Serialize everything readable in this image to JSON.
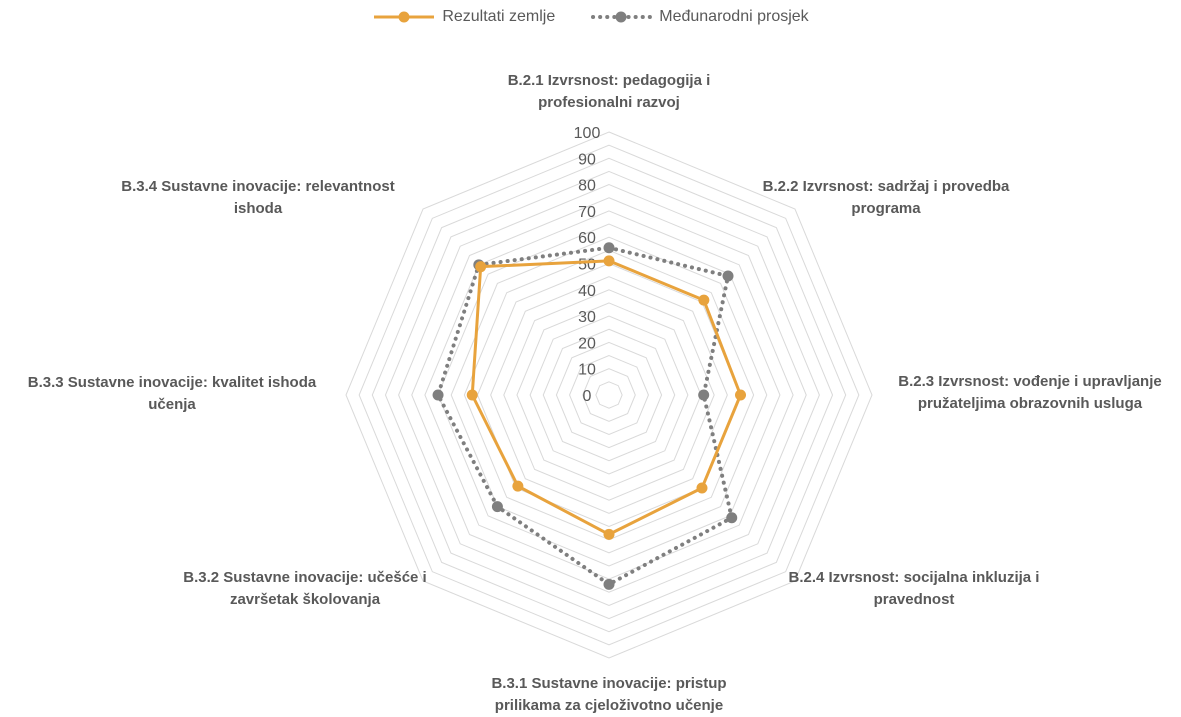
{
  "colors": {
    "country": "#E8A33D",
    "average": "#7F7F7F",
    "grid": "#D9D9D9",
    "text": "#595959"
  },
  "chart_data": {
    "type": "radar",
    "axes": [
      [
        "B.2.1 Izvrsnost: pedagogija i",
        "profesionalni razvoj"
      ],
      [
        "B.2.2 Izvrsnost: sadržaj i provedba",
        "programa"
      ],
      [
        "B.2.3 Izvrsnost: vođenje i upravljanje",
        "pružateljima obrazovnih usluga"
      ],
      [
        "B.2.4 Izvrsnost: socijalna inkluzija i",
        "pravednost"
      ],
      [
        "B.3.1 Sustavne inovacije: pristup",
        "prilikama za cjeloživotno učenje"
      ],
      [
        "B.3.2 Sustavne inovacije: učešće i",
        "završetak školovanja"
      ],
      [
        "B.3.3 Sustavne inovacije: kvalitet ishoda",
        "učenja"
      ],
      [
        "B.3.4 Sustavne inovacije: relevantnost",
        "ishoda"
      ]
    ],
    "series": [
      {
        "name": "Rezultati zemlje",
        "values": [
          51,
          51,
          50,
          50,
          53,
          49,
          52,
          69
        ],
        "style": "solid"
      },
      {
        "name": "Međunarodni prosjek",
        "values": [
          56,
          64,
          36,
          66,
          72,
          60,
          65,
          70
        ],
        "style": "dotted"
      }
    ],
    "rlim": [
      0,
      100
    ],
    "ticks": [
      "0",
      "10",
      "20",
      "30",
      "40",
      "50",
      "60",
      "70",
      "80",
      "90",
      "100"
    ],
    "gridlines_every": 5,
    "legend_position": "top"
  }
}
